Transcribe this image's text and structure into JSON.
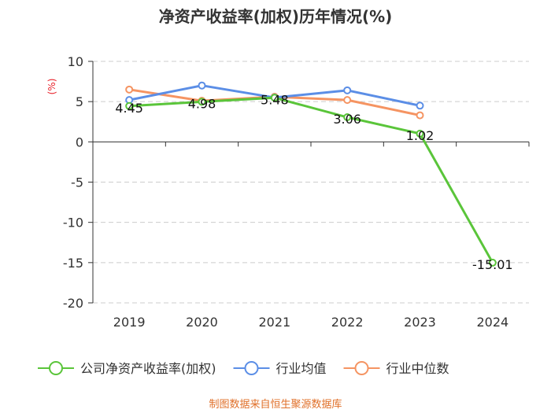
{
  "chart_data": {
    "type": "line",
    "title": "净资产收益率(加权)历年情况(%)",
    "ylabel": "(%)",
    "xlabel": "",
    "categories": [
      "2019",
      "2020",
      "2021",
      "2022",
      "2023",
      "2024"
    ],
    "ylim": [
      -20,
      10
    ],
    "yticks": [
      10,
      5,
      0,
      -5,
      -10,
      -15,
      -20
    ],
    "grid": true,
    "legend_position": "bottom",
    "series": [
      {
        "name": "公司净资产收益率(加权)",
        "color": "#5ac53a",
        "values": [
          4.45,
          4.98,
          5.48,
          3.06,
          1.02,
          -15.01
        ],
        "labels": [
          "4.45",
          "4.98",
          "5.48",
          "3.06",
          "1.02",
          "-15.01"
        ],
        "show_labels": true
      },
      {
        "name": "行业均值",
        "color": "#5b8ee6",
        "values": [
          5.2,
          7.0,
          5.5,
          6.4,
          4.5,
          null
        ],
        "show_labels": false
      },
      {
        "name": "行业中位数",
        "color": "#f59462",
        "values": [
          6.5,
          5.1,
          5.6,
          5.2,
          3.3,
          null
        ],
        "show_labels": false
      }
    ]
  },
  "source": "制图数据来自恒生聚源数据库"
}
